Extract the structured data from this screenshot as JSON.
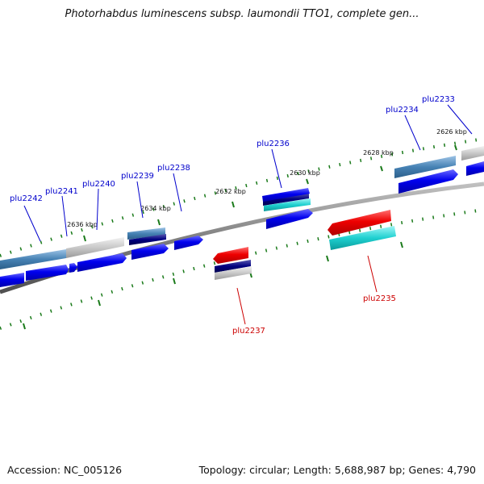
{
  "title": "Photorhabdus luminescens subsp. laumondii TTO1, complete gen...",
  "footer": {
    "accession": "Accession: NC_005126",
    "topology": "Topology: circular; Length: 5,688,987 bp; Genes: 4,790"
  },
  "colors": {
    "forward_label": "#0000cc",
    "reverse_label": "#cc0000",
    "tick": "#1a7a1a",
    "backbone": "#808080"
  },
  "ruler": [
    "2626 kbp",
    "2628 kbp",
    "2630 kbp",
    "2632 kbp",
    "2634 kbp",
    "2636 kbp"
  ],
  "genes": [
    {
      "id": "plu2233",
      "strand": "+"
    },
    {
      "id": "plu2234",
      "strand": "+"
    },
    {
      "id": "plu2235",
      "strand": "-"
    },
    {
      "id": "plu2236",
      "strand": "+"
    },
    {
      "id": "plu2237",
      "strand": "-"
    },
    {
      "id": "plu2238",
      "strand": "+"
    },
    {
      "id": "plu2239",
      "strand": "+"
    },
    {
      "id": "plu2240",
      "strand": "+"
    },
    {
      "id": "plu2241",
      "strand": "+"
    },
    {
      "id": "plu2242",
      "strand": "+"
    }
  ]
}
